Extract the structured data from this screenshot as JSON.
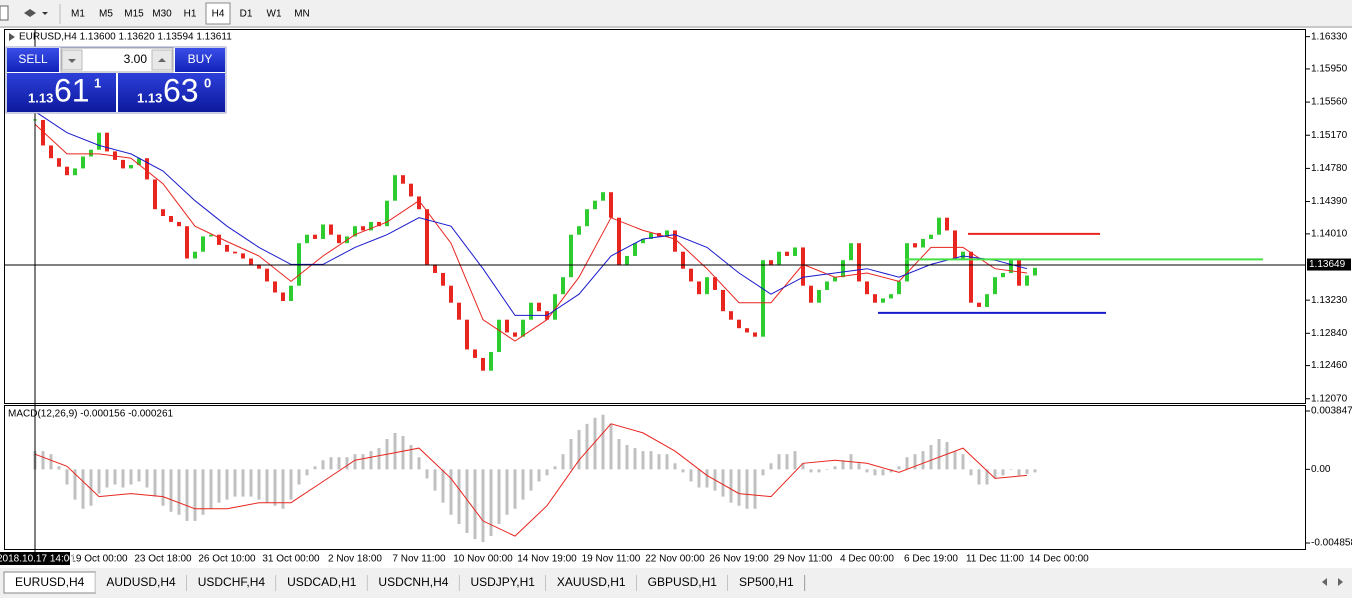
{
  "toolbar": {
    "timeframes": [
      {
        "label": "M1"
      },
      {
        "label": "M5"
      },
      {
        "label": "M15"
      },
      {
        "label": "M30"
      },
      {
        "label": "H1"
      },
      {
        "label": "H4",
        "active": true
      },
      {
        "label": "D1"
      },
      {
        "label": "W1"
      },
      {
        "label": "MN"
      }
    ]
  },
  "trade_panel": {
    "sell": "SELL",
    "buy": "BUY",
    "volume": "3.00",
    "bid": {
      "big": "1.13",
      "pips": "61",
      "point": "1"
    },
    "ask": {
      "big": "1.13",
      "pips": "63",
      "point": "0"
    }
  },
  "tabs": [
    {
      "label": "EURUSD,H4",
      "active": true
    },
    {
      "label": "AUDUSD,H4"
    },
    {
      "label": "USDCHF,H4"
    },
    {
      "label": "USDCAD,H1"
    },
    {
      "label": "USDCNH,H4"
    },
    {
      "label": "USDJPY,H1"
    },
    {
      "label": "XAUUSD,H1"
    },
    {
      "label": "GBPUSD,H1"
    },
    {
      "label": "SP500,H1"
    }
  ],
  "chart_data": [
    {
      "type": "candlestick",
      "title": "EURUSD,H4  1.13600 1.13620 1.13594 1.13611",
      "categories": [
        "2018.10.17 14:00",
        null,
        null,
        null,
        null,
        null,
        null,
        null,
        "19 Oct 00:00",
        null,
        null,
        null,
        null,
        null,
        null,
        null,
        "23 Oct 18:00",
        null,
        null,
        null,
        null,
        null,
        null,
        null,
        "26 Oct 10:00",
        null,
        null,
        null,
        null,
        null,
        null,
        null,
        "31 Oct 00:00",
        null,
        null,
        null,
        null,
        null,
        null,
        null,
        "2 Nov 18:00",
        null,
        null,
        null,
        null,
        null,
        null,
        null,
        "7 Nov 11:00",
        null,
        null,
        null,
        null,
        null,
        null,
        null,
        "10 Nov 00:00",
        null,
        null,
        null,
        null,
        null,
        null,
        null,
        "14 Nov 19:00",
        null,
        null,
        null,
        null,
        null,
        null,
        null,
        "19 Nov 11:00",
        null,
        null,
        null,
        null,
        null,
        null,
        null,
        "22 Nov 00:00",
        null,
        null,
        null,
        null,
        null,
        null,
        null,
        "26 Nov 19:00",
        null,
        null,
        null,
        null,
        null,
        null,
        null,
        "29 Nov 11:00",
        null,
        null,
        null,
        null,
        null,
        null,
        null,
        "4 Dec 00:00",
        null,
        null,
        null,
        null,
        null,
        null,
        null,
        "6 Dec 19:00",
        null,
        null,
        null,
        null,
        null,
        null,
        null,
        "11 Dec 11:00",
        null,
        null,
        null,
        null,
        null,
        null,
        null,
        "14 Dec 00:00"
      ],
      "close": [
        1.1535,
        1.1505,
        1.149,
        1.148,
        1.147,
        1.1478,
        1.1492,
        1.15,
        1.152,
        1.1498,
        1.1488,
        1.1478,
        1.1482,
        1.149,
        1.1465,
        1.143,
        1.1422,
        1.1415,
        1.141,
        1.1372,
        1.138,
        1.1398,
        1.14,
        1.1388,
        1.138,
        1.1378,
        1.1372,
        1.1365,
        1.136,
        1.1345,
        1.1332,
        1.1322,
        1.134,
        1.139,
        1.14,
        1.1395,
        1.1412,
        1.14,
        1.139,
        1.1398,
        1.141,
        1.1405,
        1.1415,
        1.141,
        1.144,
        1.147,
        1.146,
        1.1445,
        1.143,
        1.1365,
        1.1355,
        1.134,
        1.132,
        1.13,
        1.1265,
        1.1255,
        1.124,
        1.1262,
        1.13,
        1.1285,
        1.128,
        1.13,
        1.132,
        1.131,
        1.13,
        1.133,
        1.135,
        1.14,
        1.141,
        1.143,
        1.144,
        1.145,
        1.142,
        1.1365,
        1.1375,
        1.139,
        1.1395,
        1.1402,
        1.1398,
        1.1405,
        1.138,
        1.136,
        1.1345,
        1.133,
        1.135,
        1.1335,
        1.131,
        1.13,
        1.129,
        1.1285,
        1.128,
        1.137,
        1.1365,
        1.138,
        1.1375,
        1.1385,
        1.134,
        1.132,
        1.1335,
        1.1345,
        1.135,
        1.137,
        1.139,
        1.1345,
        1.133,
        1.132,
        1.1325,
        1.133,
        1.1345,
        1.139,
        1.1385,
        1.1395,
        1.14,
        1.142,
        1.1405,
        1.1372,
        1.138,
        1.132,
        1.1315,
        1.133,
        1.135,
        1.1355,
        1.137,
        1.134,
        1.1352,
        1.1361,
        null,
        null,
        null
      ],
      "up_color": "#2ecc2e",
      "down_color": "#e8251f",
      "lines": [
        {
          "color": "#e8251f",
          "x": [
            0,
            4,
            8,
            12,
            16,
            20,
            24,
            28,
            32,
            36,
            40,
            44,
            48,
            52,
            56,
            60,
            64,
            68,
            72,
            76,
            80,
            84,
            88,
            92,
            96,
            100,
            104,
            108,
            112,
            116,
            120,
            124
          ],
          "values": [
            1.153,
            1.1495,
            1.1495,
            1.149,
            1.146,
            1.141,
            1.1392,
            1.1375,
            1.1345,
            1.1375,
            1.14,
            1.1415,
            1.144,
            1.139,
            1.13,
            1.1275,
            1.13,
            1.135,
            1.142,
            1.1405,
            1.1395,
            1.136,
            1.132,
            1.132,
            1.1365,
            1.135,
            1.1355,
            1.1345,
            1.1385,
            1.1385,
            1.136,
            1.1355
          ]
        },
        {
          "color": "#1a1acd",
          "x": [
            0,
            4,
            8,
            12,
            16,
            20,
            24,
            28,
            32,
            36,
            40,
            44,
            48,
            52,
            56,
            60,
            64,
            68,
            72,
            76,
            80,
            84,
            88,
            92,
            96,
            100,
            104,
            108,
            112,
            116,
            120,
            124
          ],
          "values": [
            1.1545,
            1.152,
            1.1505,
            1.1495,
            1.1475,
            1.144,
            1.141,
            1.1385,
            1.1365,
            1.1365,
            1.1385,
            1.14,
            1.142,
            1.141,
            1.136,
            1.1305,
            1.1305,
            1.133,
            1.1375,
            1.1395,
            1.14,
            1.1385,
            1.1355,
            1.133,
            1.135,
            1.1355,
            1.136,
            1.135,
            1.1365,
            1.1375,
            1.137,
            1.136
          ]
        }
      ],
      "levels": [
        {
          "value": 1.1401,
          "color": "#e8251f"
        },
        {
          "value": 1.1371,
          "color": "#44e044"
        },
        {
          "value": 1.1308,
          "color": "#1a1acd"
        }
      ],
      "current_price": {
        "value": 1.13649,
        "label": "1.13649"
      },
      "ylim": [
        1.1642,
        1.1202
      ],
      "yticks": [
        {
          "value": 1.1633,
          "label": "1.16330"
        },
        {
          "value": 1.1595,
          "label": "1.15950"
        },
        {
          "value": 1.1556,
          "label": "1.15560"
        },
        {
          "value": 1.1517,
          "label": "1.15170"
        },
        {
          "value": 1.1478,
          "label": "1.14780"
        },
        {
          "value": 1.1439,
          "label": "1.14390"
        },
        {
          "value": 1.1401,
          "label": "1.14010"
        },
        {
          "value": 1.1323,
          "label": "1.13230"
        },
        {
          "value": 1.1284,
          "label": "1.12840"
        },
        {
          "value": 1.1246,
          "label": "1.12460"
        },
        {
          "value": 1.1207,
          "label": "1.12070"
        }
      ]
    },
    {
      "type": "bar",
      "title": "MACD(12,26,9) -0.000156 -0.000261",
      "color": "#c0c0c0",
      "values": [
        0.0012,
        0.0012,
        0.001,
        0.0002,
        -0.001,
        -0.002,
        -0.0026,
        -0.0024,
        -0.0016,
        -0.0012,
        -0.001,
        -0.0012,
        -0.001,
        -0.0008,
        -0.0012,
        -0.0018,
        -0.0024,
        -0.0028,
        -0.003,
        -0.0034,
        -0.0034,
        -0.003,
        -0.0026,
        -0.0022,
        -0.002,
        -0.0018,
        -0.0018,
        -0.0018,
        -0.002,
        -0.0022,
        -0.0024,
        -0.0026,
        -0.002,
        -0.001,
        -0.0004,
        0.0002,
        0.0006,
        0.0008,
        0.0008,
        0.0008,
        0.001,
        0.001,
        0.0012,
        0.0014,
        0.002,
        0.0024,
        0.0022,
        0.0016,
        0.0008,
        -0.0006,
        -0.0014,
        -0.0022,
        -0.003,
        -0.0036,
        -0.0042,
        -0.0046,
        -0.0048,
        -0.0044,
        -0.0036,
        -0.003,
        -0.0026,
        -0.002,
        -0.0014,
        -0.0008,
        -0.0004,
        0.0002,
        0.001,
        0.002,
        0.0026,
        0.003,
        0.0034,
        0.0036,
        0.003,
        0.002,
        0.0016,
        0.0014,
        0.0012,
        0.0012,
        0.001,
        0.001,
        0.0004,
        -0.0002,
        -0.0008,
        -0.0012,
        -0.0012,
        -0.0014,
        -0.0018,
        -0.0022,
        -0.0024,
        -0.0026,
        -0.0026,
        -0.0004,
        0.0004,
        0.001,
        0.001,
        0.0012,
        0.0004,
        -0.0002,
        -0.0002,
        0.0,
        0.0002,
        0.0006,
        0.001,
        0.0004,
        -0.0002,
        -0.0004,
        -0.0004,
        -0.0002,
        0.0002,
        0.0008,
        0.001,
        0.0012,
        0.0016,
        0.002,
        0.0018,
        0.0012,
        0.001,
        -0.0004,
        -0.001,
        -0.001,
        -0.0006,
        -0.0004,
        0.0,
        -0.0004,
        -0.0003,
        -0.0002,
        null,
        null,
        null
      ],
      "signal": {
        "color": "#e8251f",
        "x": [
          0,
          4,
          8,
          12,
          16,
          20,
          24,
          28,
          32,
          36,
          40,
          44,
          48,
          52,
          56,
          60,
          64,
          68,
          72,
          76,
          80,
          84,
          88,
          92,
          96,
          100,
          104,
          108,
          112,
          116,
          120,
          124
        ],
        "values": [
          0.001,
          0.0002,
          -0.0018,
          -0.0016,
          -0.0018,
          -0.0026,
          -0.0026,
          -0.0022,
          -0.0022,
          -0.0008,
          0.0006,
          0.001,
          0.0014,
          -0.0006,
          -0.0034,
          -0.0044,
          -0.0024,
          0.0006,
          0.003,
          0.0024,
          0.0012,
          -0.0004,
          -0.0016,
          -0.0018,
          0.0004,
          0.0006,
          0.0004,
          -0.0002,
          0.0006,
          0.0014,
          -0.0006,
          -0.0004
        ]
      },
      "ylim": [
        0.004177,
        -0.005254
      ],
      "yticks": [
        0.003847,
        {
          "value": 0,
          "label": "0.00"
        },
        -0.004858
      ]
    }
  ]
}
